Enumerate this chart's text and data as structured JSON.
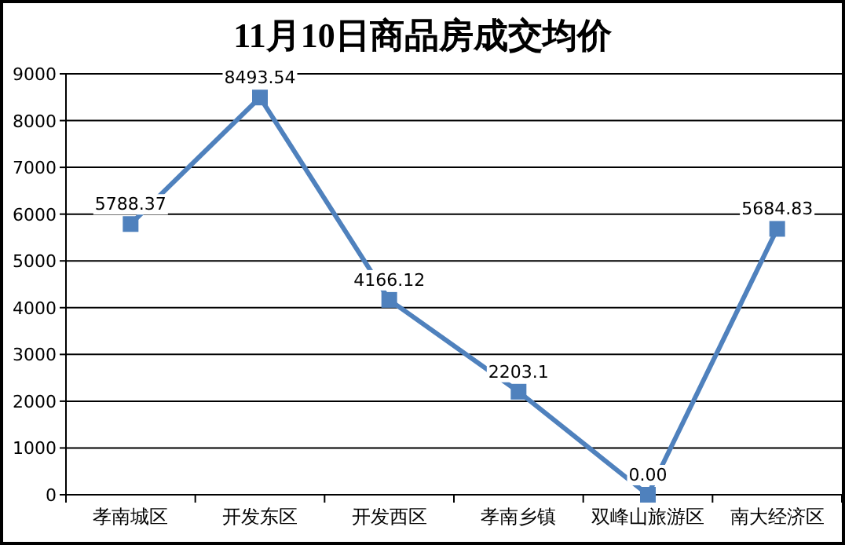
{
  "chart_data": {
    "type": "line",
    "title": "11月10日商品房成交均价",
    "categories": [
      "孝南城区",
      "开发东区",
      "开发西区",
      "孝南乡镇",
      "双峰山旅游区",
      "南大经济区"
    ],
    "series": [
      {
        "color": "#4f81bd",
        "values": [
          5788.37,
          8493.54,
          4166.12,
          2203.1,
          0,
          5684.83
        ],
        "value_labels": [
          "5788.37",
          "8493.54",
          "4166.12",
          "2203.1",
          "0.00",
          "5684.83"
        ]
      }
    ],
    "ylim": [
      0,
      9000
    ],
    "yticks": [
      0,
      1000,
      2000,
      3000,
      4000,
      5000,
      6000,
      7000,
      8000,
      9000
    ],
    "grid": "y",
    "marker": "square"
  }
}
